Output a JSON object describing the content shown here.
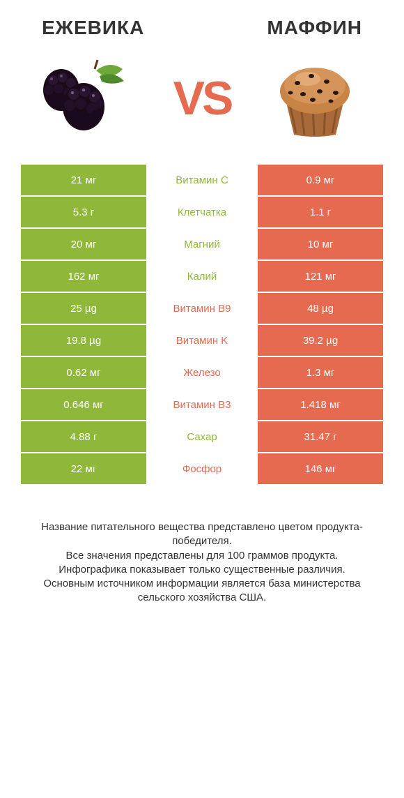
{
  "colors": {
    "green": "#8fb83a",
    "orange": "#e56a4f",
    "text": "#333333",
    "bg": "#ffffff"
  },
  "header": {
    "left": "ЕЖЕВИКА",
    "right": "МАФФИН",
    "vs": "VS"
  },
  "icons": {
    "left": "blackberry",
    "right": "muffin"
  },
  "rows": [
    {
      "label": "Витамин С",
      "left": "21 мг",
      "right": "0.9 мг",
      "winner": "left"
    },
    {
      "label": "Клетчатка",
      "left": "5.3 г",
      "right": "1.1 г",
      "winner": "left"
    },
    {
      "label": "Магний",
      "left": "20 мг",
      "right": "10 мг",
      "winner": "left"
    },
    {
      "label": "Калий",
      "left": "162 мг",
      "right": "121 мг",
      "winner": "left"
    },
    {
      "label": "Витамин B9",
      "left": "25 µg",
      "right": "48 µg",
      "winner": "right"
    },
    {
      "label": "Витамин K",
      "left": "19.8 µg",
      "right": "39.2 µg",
      "winner": "right"
    },
    {
      "label": "Железо",
      "left": "0.62 мг",
      "right": "1.3 мг",
      "winner": "right"
    },
    {
      "label": "Витамин B3",
      "left": "0.646 мг",
      "right": "1.418 мг",
      "winner": "right"
    },
    {
      "label": "Сахар",
      "left": "4.88 г",
      "right": "31.47 г",
      "winner": "left"
    },
    {
      "label": "Фосфор",
      "left": "22 мг",
      "right": "146 мг",
      "winner": "right"
    }
  ],
  "footer": "Название питательного вещества представлено цветом продукта-победителя.\nВсе значения представлены для 100 граммов продукта.\nИнфографика показывает только существенные различия.\nОсновным источником информации является база министерства сельского хозяйства США."
}
